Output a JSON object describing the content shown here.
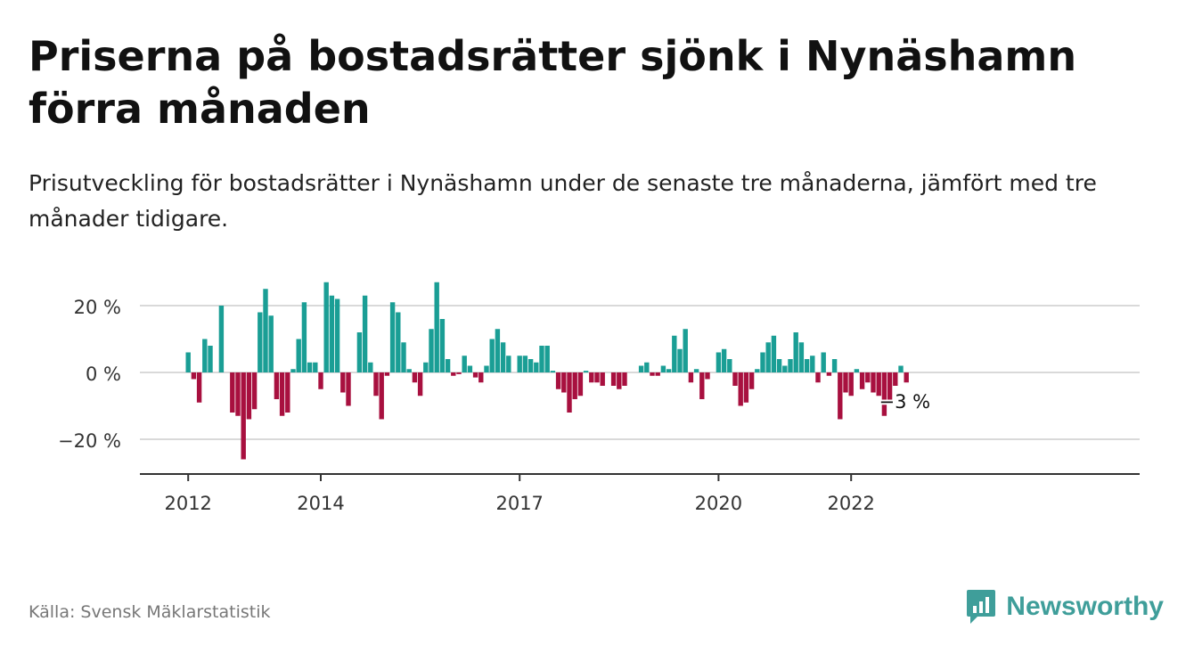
{
  "title": "Priserna på bostadsrätter sjönk i Nynäshamn förra månaden",
  "subtitle": "Prisutveckling för bostadsrätter i Nynäshamn under de senaste tre månaderna, jämfört med tre månader tidigare.",
  "source": "Källa: Svensk Mäklarstatistik",
  "brand": "Newsworthy",
  "colors": {
    "positive": "#1a9e95",
    "negative": "#a8103f",
    "grid": "#d9d9d9",
    "axis": "#333333",
    "brand": "#3f9e9a"
  },
  "chart_data": {
    "type": "bar",
    "start": "2012-01",
    "frequency": "monthly",
    "yticks": [
      {
        "value": 20,
        "label": "20 %"
      },
      {
        "value": 0,
        "label": "0 %"
      },
      {
        "value": -20,
        "label": "−20 %"
      }
    ],
    "xticks": [
      "2012",
      "2014",
      "2017",
      "2020",
      "2022"
    ],
    "ylim": [
      -30,
      30
    ],
    "grid": true,
    "last_value_label": "−3 %",
    "values": [
      6,
      -2,
      -9,
      10,
      8,
      0,
      20,
      0,
      -12,
      -13,
      -26,
      -14,
      -11,
      18,
      25,
      17,
      -8,
      -13,
      -12,
      1,
      10,
      21,
      3,
      3,
      -5,
      27,
      23,
      22,
      -6,
      -10,
      0,
      12,
      23,
      3,
      -7,
      -14,
      -1,
      21,
      18,
      9,
      1,
      -3,
      -7,
      3,
      13,
      27,
      16,
      4,
      -1,
      -0.5,
      5,
      2,
      -1.5,
      -3,
      2,
      10,
      13,
      9,
      5,
      0,
      5,
      5,
      4,
      3,
      8,
      8,
      0.5,
      -5,
      -6,
      -12,
      -8,
      -7,
      0.5,
      -3,
      -3,
      -4,
      0,
      -4,
      -5,
      -4,
      0,
      0,
      2,
      3,
      -1,
      -1,
      2,
      1,
      11,
      7,
      13,
      -3,
      1,
      -8,
      -2,
      0,
      6,
      7,
      4,
      -4,
      -10,
      -9,
      -5,
      1,
      6,
      9,
      11,
      4,
      2,
      4,
      12,
      9,
      4,
      5,
      -3,
      6,
      -1,
      4,
      -14,
      -6,
      -7,
      1,
      -5,
      -3,
      -6,
      -7,
      -13,
      -9,
      -4,
      2,
      -3
    ]
  }
}
